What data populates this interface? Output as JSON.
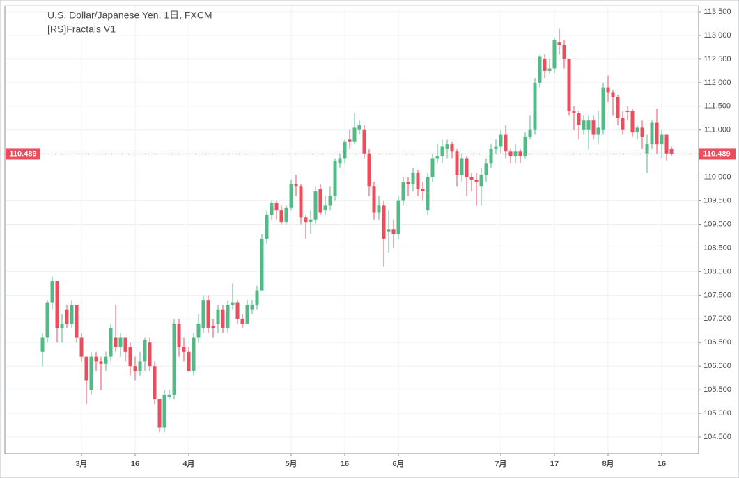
{
  "chart_data": {
    "type": "candlestick",
    "title": "U.S. Dollar/Japanese Yen, 1日, FXCM",
    "subtitle": "[RS]Fractals V1",
    "categories": [
      null,
      null,
      null,
      null,
      null,
      null,
      null,
      null,
      "3月",
      null,
      null,
      null,
      null,
      null,
      null,
      null,
      null,
      null,
      null,
      "16",
      null,
      null,
      null,
      null,
      null,
      null,
      null,
      null,
      null,
      null,
      "4月",
      null,
      null,
      null,
      null,
      null,
      null,
      null,
      null,
      null,
      null,
      null,
      null,
      null,
      null,
      null,
      null,
      null,
      null,
      null,
      null,
      "5月",
      null,
      null,
      null,
      null,
      null,
      null,
      null,
      null,
      null,
      null,
      "16",
      null,
      null,
      null,
      null,
      null,
      null,
      null,
      null,
      null,
      null,
      "6月",
      null,
      null,
      null,
      null,
      null,
      null,
      null,
      null,
      null,
      null,
      null,
      null,
      null,
      null,
      null,
      null,
      null,
      null,
      null,
      null,
      "7月",
      null,
      null,
      null,
      null,
      null,
      null,
      null,
      null,
      null,
      null,
      "17",
      null,
      null,
      null,
      null,
      null,
      null,
      null,
      null,
      null,
      null,
      "8月",
      null,
      null,
      null,
      null,
      null,
      null,
      null,
      null,
      null,
      null,
      "16",
      null,
      null
    ],
    "open": [
      106.3,
      106.6,
      107.35,
      107.8,
      106.8,
      107.2,
      106.9,
      107.3,
      106.6,
      106.2,
      105.5,
      106.2,
      106.1,
      106.05,
      106.2,
      106.6,
      106.4,
      106.6,
      106.4,
      106.0,
      105.9,
      106.1,
      106.5,
      106.0,
      105.3,
      104.7,
      105.35,
      105.4,
      106.9,
      106.4,
      106.3,
      105.9,
      106.6,
      106.8,
      107.4,
      106.85,
      106.9,
      107.2,
      106.8,
      107.3,
      107.35,
      107.0,
      106.9,
      107.2,
      107.3,
      107.6,
      108.7,
      109.2,
      109.45,
      109.3,
      109.05,
      109.35,
      109.85,
      109.8,
      109.15,
      109.05,
      109.1,
      109.75,
      109.3,
      109.4,
      109.6,
      110.3,
      110.4,
      110.8,
      110.75,
      111.0,
      111.0,
      110.5,
      109.8,
      109.25,
      109.4,
      108.85,
      108.9,
      108.8,
      109.5,
      109.9,
      109.85,
      110.1,
      109.75,
      109.3,
      110.0,
      110.4,
      110.45,
      110.6,
      110.7,
      110.55,
      110.05,
      110.4,
      110.0,
      109.95,
      109.8,
      110.05,
      110.3,
      110.6,
      110.65,
      110.9,
      110.55,
      110.45,
      110.55,
      110.45,
      110.85,
      111.0,
      112.0,
      112.5,
      112.25,
      112.3,
      112.85,
      112.8,
      112.5,
      111.4,
      111.35,
      111.0,
      111.0,
      111.2,
      110.9,
      111.0,
      111.9,
      111.8,
      111.7,
      111.25,
      111.4,
      111.4,
      110.95,
      111.05,
      110.5,
      110.7,
      111.15,
      110.7,
      110.9,
      110.6
    ],
    "high": [
      106.7,
      107.4,
      107.9,
      107.8,
      107.1,
      107.3,
      107.4,
      107.3,
      106.7,
      106.2,
      106.3,
      106.3,
      106.2,
      106.3,
      106.9,
      107.3,
      106.7,
      106.6,
      106.5,
      106.2,
      106.3,
      106.6,
      106.6,
      106.1,
      105.3,
      105.5,
      105.5,
      107.0,
      107.0,
      106.6,
      106.4,
      106.7,
      107.1,
      107.5,
      107.5,
      107.0,
      107.3,
      107.3,
      107.4,
      107.75,
      107.4,
      107.1,
      107.4,
      107.4,
      107.7,
      108.8,
      109.3,
      109.5,
      109.5,
      109.4,
      109.4,
      109.95,
      110.05,
      109.85,
      109.2,
      109.3,
      109.8,
      109.85,
      109.6,
      109.8,
      110.4,
      110.5,
      110.8,
      111.0,
      111.35,
      111.2,
      111.1,
      110.6,
      109.9,
      109.6,
      109.5,
      109.3,
      109.1,
      109.6,
      110.0,
      110.0,
      110.2,
      110.15,
      109.9,
      110.1,
      110.5,
      110.7,
      110.8,
      110.8,
      110.75,
      110.6,
      110.5,
      110.45,
      110.1,
      110.1,
      110.2,
      110.4,
      110.7,
      110.8,
      111.0,
      111.1,
      110.6,
      110.7,
      110.6,
      110.95,
      111.3,
      112.1,
      112.6,
      112.6,
      112.5,
      112.95,
      113.15,
      112.9,
      112.5,
      111.5,
      111.4,
      111.3,
      111.3,
      111.3,
      111.4,
      112.0,
      112.15,
      111.85,
      111.75,
      111.4,
      111.5,
      111.45,
      111.1,
      111.2,
      110.9,
      111.2,
      111.45,
      111.0,
      110.9,
      110.65
    ],
    "low": [
      106.0,
      106.5,
      107.2,
      106.5,
      106.5,
      106.8,
      106.8,
      106.5,
      106.1,
      105.2,
      105.4,
      105.9,
      105.5,
      105.9,
      106.1,
      106.3,
      106.2,
      106.1,
      105.8,
      105.7,
      105.8,
      105.9,
      105.9,
      105.2,
      104.6,
      104.6,
      105.3,
      105.3,
      106.2,
      106.1,
      105.9,
      105.8,
      106.5,
      106.7,
      106.7,
      106.6,
      106.7,
      106.7,
      106.7,
      107.2,
      106.9,
      106.8,
      106.9,
      107.1,
      107.2,
      107.6,
      108.6,
      109.1,
      109.1,
      109.0,
      109.0,
      109.3,
      109.6,
      109.0,
      108.7,
      108.8,
      109.0,
      109.2,
      109.2,
      109.3,
      109.5,
      110.2,
      110.3,
      110.6,
      110.7,
      110.9,
      110.4,
      109.6,
      109.1,
      109.1,
      108.1,
      108.4,
      108.5,
      108.7,
      109.4,
      109.6,
      109.7,
      109.6,
      109.5,
      109.2,
      109.9,
      110.3,
      110.3,
      110.4,
      110.4,
      109.8,
      109.9,
      109.6,
      109.7,
      109.4,
      109.4,
      109.9,
      110.2,
      110.5,
      110.5,
      110.4,
      110.3,
      110.3,
      110.3,
      110.4,
      110.8,
      110.9,
      111.9,
      112.1,
      112.2,
      112.2,
      112.6,
      112.3,
      111.3,
      111.0,
      110.8,
      110.9,
      110.6,
      110.8,
      110.7,
      110.9,
      111.6,
      111.3,
      111.1,
      110.9,
      111.2,
      110.85,
      110.8,
      110.6,
      110.1,
      110.6,
      110.5,
      110.4,
      110.35,
      110.45
    ],
    "close": [
      106.6,
      107.35,
      107.8,
      106.8,
      106.9,
      106.9,
      107.3,
      106.6,
      106.2,
      105.7,
      106.2,
      106.1,
      106.05,
      106.2,
      106.8,
      106.4,
      106.6,
      106.3,
      106.0,
      105.9,
      106.1,
      106.55,
      106.0,
      105.3,
      104.7,
      105.4,
      105.4,
      106.9,
      106.4,
      106.3,
      105.9,
      106.6,
      106.9,
      107.4,
      106.8,
      106.8,
      107.2,
      106.8,
      107.3,
      107.35,
      107.0,
      106.9,
      107.3,
      107.3,
      107.6,
      108.7,
      109.2,
      109.45,
      109.3,
      109.05,
      109.35,
      109.85,
      109.8,
      109.15,
      109.05,
      109.1,
      109.7,
      109.25,
      109.4,
      109.6,
      110.35,
      110.4,
      110.75,
      110.75,
      111.05,
      111.1,
      110.5,
      109.8,
      109.25,
      109.4,
      108.7,
      108.9,
      108.8,
      109.5,
      109.9,
      109.85,
      110.1,
      109.75,
      109.7,
      110.0,
      110.4,
      110.45,
      110.65,
      110.7,
      110.55,
      110.05,
      110.4,
      110.0,
      109.95,
      109.9,
      110.05,
      110.3,
      110.6,
      110.65,
      110.9,
      110.55,
      110.45,
      110.55,
      110.45,
      110.85,
      111.0,
      112.0,
      112.55,
      112.25,
      112.3,
      112.9,
      112.8,
      112.5,
      111.4,
      111.35,
      111.1,
      111.2,
      111.2,
      110.9,
      111.05,
      111.9,
      111.8,
      111.7,
      111.25,
      111.0,
      111.38,
      110.95,
      111.05,
      110.85,
      110.7,
      111.15,
      110.7,
      110.9,
      110.5,
      110.489
    ],
    "up_color": "#53b987",
    "down_color": "#eb4d5c",
    "ylim": [
      104.147,
      113.633
    ],
    "yticks": [
      {
        "value": 104.5,
        "label": "104.500"
      },
      {
        "value": 105,
        "label": "105.000"
      },
      {
        "value": 105.5,
        "label": "105.500"
      },
      {
        "value": 106,
        "label": "106.000"
      },
      {
        "value": 106.5,
        "label": "106.500"
      },
      {
        "value": 107,
        "label": "107.000"
      },
      {
        "value": 107.5,
        "label": "107.500"
      },
      {
        "value": 108,
        "label": "108.000"
      },
      {
        "value": 108.5,
        "label": "108.500"
      },
      {
        "value": 109,
        "label": "109.000"
      },
      {
        "value": 109.5,
        "label": "109.500"
      },
      {
        "value": 110,
        "label": "110.000"
      },
      {
        "value": 110.5,
        "label": "110.500"
      },
      {
        "value": 111,
        "label": "111.000"
      },
      {
        "value": 111.5,
        "label": "111.500"
      },
      {
        "value": 112,
        "label": "112.000"
      },
      {
        "value": 112.5,
        "label": "112.500"
      },
      {
        "value": 113,
        "label": "113.000"
      },
      {
        "value": 113.5,
        "label": "113.500"
      }
    ],
    "grid": true,
    "last_price": 110.489,
    "last_price_color": "#eb4d5c"
  }
}
